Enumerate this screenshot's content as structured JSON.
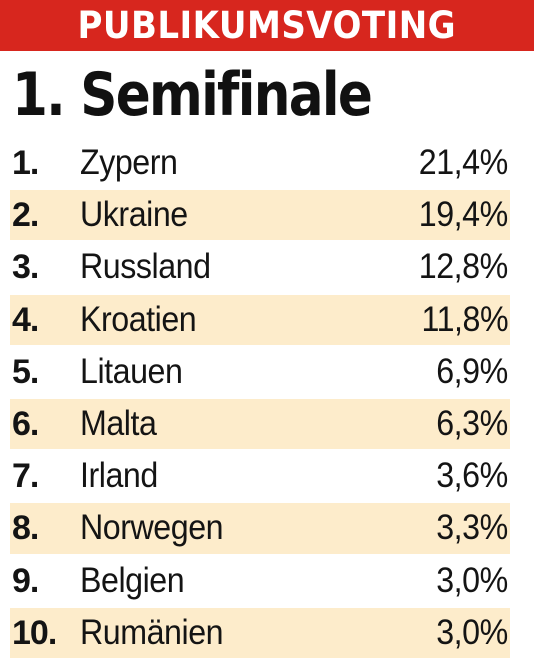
{
  "banner": {
    "title": "PUBLIKUMSVOTING",
    "color": "#d7261e"
  },
  "heading": "1. Semifinale",
  "stripe_color": "#fdeccb",
  "results": [
    {
      "rank": "1.",
      "country": "Zypern",
      "percent": "21,4%"
    },
    {
      "rank": "2.",
      "country": "Ukraine",
      "percent": "19,4%"
    },
    {
      "rank": "3.",
      "country": "Russland",
      "percent": "12,8%"
    },
    {
      "rank": "4.",
      "country": "Kroatien",
      "percent": "11,8%"
    },
    {
      "rank": "5.",
      "country": "Litauen",
      "percent": "6,9%"
    },
    {
      "rank": "6.",
      "country": "Malta",
      "percent": "6,3%"
    },
    {
      "rank": "7.",
      "country": "Irland",
      "percent": "3,6%"
    },
    {
      "rank": "8.",
      "country": "Norwegen",
      "percent": "3,3%"
    },
    {
      "rank": "9.",
      "country": "Belgien",
      "percent": "3,0%"
    },
    {
      "rank": "10.",
      "country": "Rumänien",
      "percent": "3,0%"
    }
  ]
}
